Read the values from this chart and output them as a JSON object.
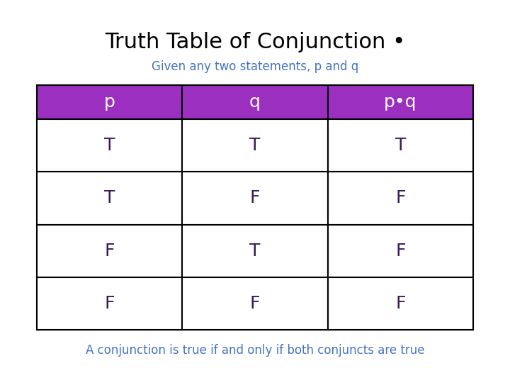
{
  "title": "Truth Table of Conjunction •",
  "subtitle": "Given any two statements, p and q",
  "footer": "A conjunction is true if and only if both conjuncts are true",
  "col_headers": [
    "p",
    "q",
    "p•q"
  ],
  "rows": [
    [
      "T",
      "T",
      "T"
    ],
    [
      "T",
      "F",
      "F"
    ],
    [
      "F",
      "T",
      "F"
    ],
    [
      "F",
      "F",
      "F"
    ]
  ],
  "header_bg": "#9B30C0",
  "header_text_color": "#FFFFFF",
  "cell_bg": "#FFFFFF",
  "cell_text_color": "#3B1A5A",
  "border_color": "#000000",
  "title_color": "#000000",
  "subtitle_color": "#4472C4",
  "footer_color": "#4472C4",
  "background_color": "#FFFFFF",
  "title_fontsize": 22,
  "subtitle_fontsize": 12,
  "footer_fontsize": 12,
  "header_fontsize": 18,
  "cell_fontsize": 18
}
